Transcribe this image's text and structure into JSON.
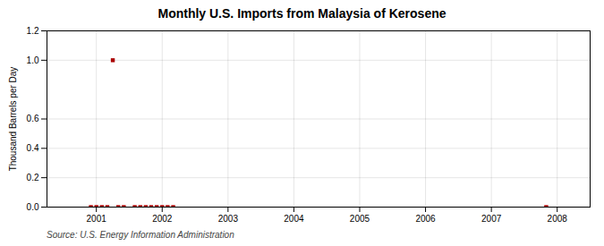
{
  "chart_data": {
    "type": "scatter",
    "title": "Monthly U.S. Imports from Malaysia of Kerosene",
    "ylabel": "Thousand Barrels per Day",
    "annotations": [
      "Source: U.S. Energy Information Administration"
    ],
    "x": [
      2000.917,
      2001.0,
      2001.083,
      2001.167,
      2001.25,
      2001.333,
      2001.417,
      2001.583,
      2001.667,
      2001.75,
      2001.833,
      2001.917,
      2002.0,
      2002.083,
      2002.167,
      2007.833
    ],
    "values": [
      0.0,
      0.0,
      0.0,
      0.0,
      1.0,
      0.0,
      0.0,
      0.0,
      0.0,
      0.0,
      0.0,
      0.0,
      0.0,
      0.0,
      0.0,
      0.0
    ],
    "color": "#aa0000",
    "marker": "square",
    "xlim": [
      2000.25,
      2008.5
    ],
    "xticks": [
      2001,
      2002,
      2003,
      2004,
      2005,
      2006,
      2007,
      2008
    ],
    "ylim": [
      0.0,
      1.2
    ],
    "yticks": [
      {
        "value": 0,
        "label": "0.0"
      },
      0.2,
      0.4,
      0.6,
      {
        "value": 1,
        "label": "1.0"
      },
      1.2
    ],
    "grid": true
  }
}
